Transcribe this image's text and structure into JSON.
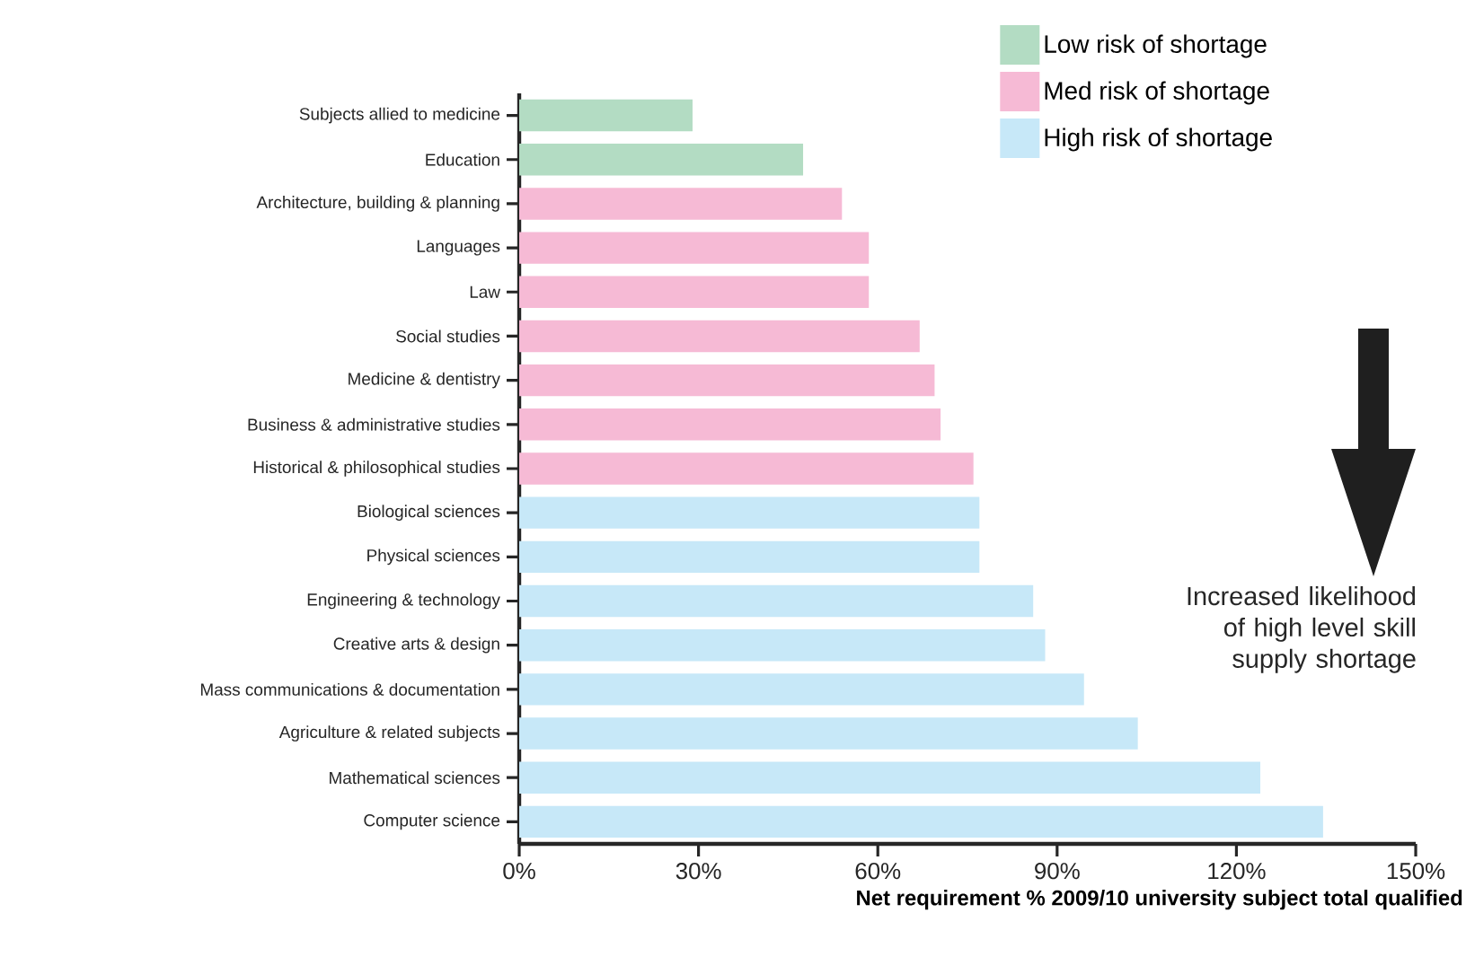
{
  "chart_data": {
    "type": "bar",
    "orientation": "horizontal",
    "xlabel": "Net requirement % 2009/10 university subject total qualified",
    "categories": [
      "Subjects allied to medicine",
      "Education",
      "Architecture, building & planning",
      "Languages",
      "Law",
      "Social studies",
      "Medicine & dentistry",
      "Business & administrative studies",
      "Historical & philosophical studies",
      "Biological sciences",
      "Physical sciences",
      "Engineering & technology",
      "Creative arts & design",
      "Mass communications & documentation",
      "Agriculture & related subjects",
      "Mathematical sciences",
      "Computer science"
    ],
    "series": [
      {
        "name": "Low risk of shortage",
        "color": "#b3dcc3",
        "values": [
          29,
          47.5,
          null,
          null,
          null,
          null,
          null,
          null,
          null,
          null,
          null,
          null,
          null,
          null,
          null,
          null,
          null
        ]
      },
      {
        "name": "Med risk of shortage",
        "color": "#f6bad5",
        "values": [
          null,
          null,
          54,
          58.5,
          58.5,
          67,
          69.5,
          70.5,
          76,
          null,
          null,
          null,
          null,
          null,
          null,
          null,
          null
        ]
      },
      {
        "name": "High risk of shortage",
        "color": "#c7e8f8",
        "values": [
          null,
          null,
          null,
          null,
          null,
          null,
          null,
          null,
          null,
          77,
          77,
          86,
          88,
          94.5,
          103.5,
          124,
          134.5
        ]
      }
    ],
    "xlim": [
      0,
      150
    ],
    "xticks": [
      {
        "value": 0,
        "label": "0%"
      },
      {
        "value": 30,
        "label": "30%"
      },
      {
        "value": 60,
        "label": "60%"
      },
      {
        "value": 90,
        "label": "90%"
      },
      {
        "value": 120,
        "label": "120%"
      },
      {
        "value": 150,
        "label": "150%"
      }
    ],
    "legend": "top right",
    "grid": false,
    "annotations": [
      "Increased likelihood of high level skill supply shortage"
    ]
  }
}
